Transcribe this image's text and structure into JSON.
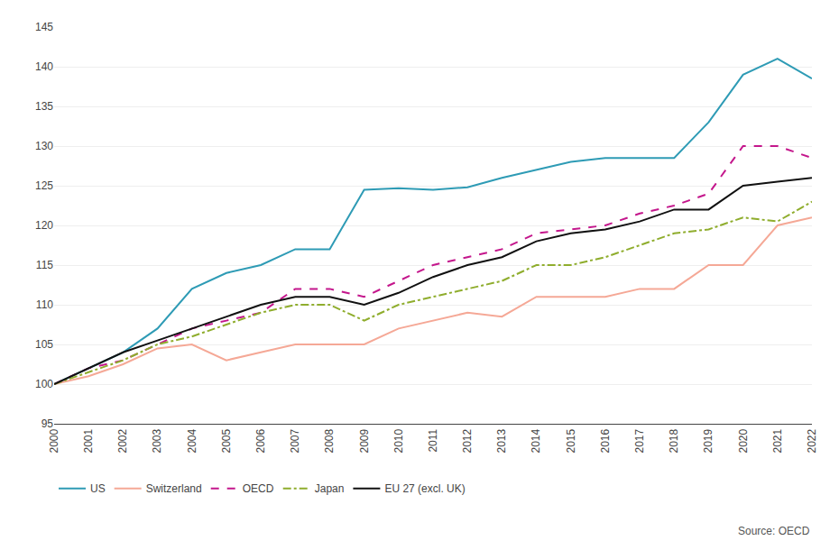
{
  "chart_data": {
    "type": "line",
    "x": [
      2000,
      2001,
      2002,
      2003,
      2004,
      2005,
      2006,
      2007,
      2008,
      2009,
      2010,
      2011,
      2012,
      2013,
      2014,
      2015,
      2016,
      2017,
      2018,
      2019,
      2020,
      2021,
      2022
    ],
    "series": [
      {
        "name": "US",
        "color": "#2E9BB5",
        "line_style": "solid",
        "values": [
          100,
          102,
          104,
          107,
          112,
          114,
          115,
          117,
          117,
          124.5,
          124.7,
          124.5,
          124.8,
          126,
          127,
          128,
          128.5,
          128.5,
          128.5,
          133,
          139,
          141,
          138.5
        ]
      },
      {
        "name": "Switzerland",
        "color": "#F5A896",
        "line_style": "solid",
        "values": [
          100,
          101,
          102.5,
          104.5,
          105,
          103,
          104,
          105,
          105,
          105,
          107,
          108,
          109,
          108.5,
          111,
          111,
          111,
          112,
          112,
          115,
          115,
          120,
          121
        ]
      },
      {
        "name": "OECD",
        "color": "#C4178C",
        "line_style": "dashed",
        "values": [
          100,
          102,
          103,
          105,
          107,
          108,
          109,
          112,
          112,
          111,
          113,
          115,
          116,
          117,
          119,
          119.5,
          120,
          121.5,
          122.5,
          124,
          130,
          130,
          128.5
        ]
      },
      {
        "name": "Japan",
        "color": "#8FAD2D",
        "line_style": "dashdot",
        "values": [
          100,
          101.5,
          103,
          105,
          106,
          107.5,
          109,
          110,
          110,
          108,
          110,
          111,
          112,
          113,
          115,
          115,
          116,
          117.5,
          119,
          119.5,
          121,
          120.5,
          123
        ]
      },
      {
        "name": "EU 27 (excl. UK)",
        "color": "#111111",
        "line_style": "solid",
        "values": [
          100,
          102,
          104,
          105.5,
          107,
          108.5,
          110,
          111,
          111,
          110,
          111.5,
          113.5,
          115,
          116,
          118,
          119,
          119.5,
          120.5,
          122,
          122,
          125,
          125.5,
          126
        ]
      }
    ],
    "xlim": [
      2000,
      2022
    ],
    "xticks": [
      2000,
      2001,
      2002,
      2003,
      2004,
      2005,
      2006,
      2007,
      2008,
      2009,
      2010,
      2011,
      2012,
      2013,
      2014,
      2015,
      2016,
      2017,
      2018,
      2019,
      2020,
      2021,
      2022
    ],
    "ylim": [
      95,
      145
    ],
    "yticks": [
      95,
      100,
      105,
      110,
      115,
      120,
      125,
      130,
      135,
      140,
      145
    ],
    "grid": "y",
    "legend": "bottom",
    "annotations": [
      "Source: OECD"
    ]
  }
}
